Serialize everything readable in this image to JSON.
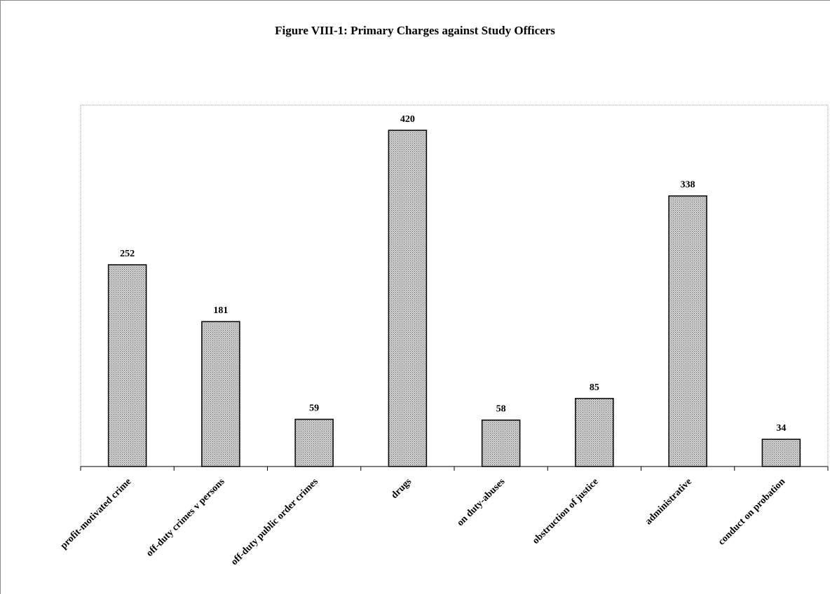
{
  "chart_data": {
    "type": "bar",
    "title": "Figure VIII-1: Primary Charges against Study Officers",
    "categories": [
      "profit-motivated crime",
      "off-duty crimes v persons",
      "off-duty public order crimes",
      "drugs",
      "on duty-abuses",
      "obstruction of justice",
      "administrative",
      "conduct on probation"
    ],
    "values": [
      252,
      181,
      59,
      420,
      58,
      85,
      338,
      34
    ],
    "data_labels": [
      "252",
      "181",
      "59",
      "420",
      "58",
      "85",
      "338",
      "34"
    ],
    "xlabel": "",
    "ylabel": "",
    "ylim": [
      0,
      450
    ],
    "grid": false,
    "legend": "none",
    "bar_fill": "#bdbdbd",
    "bar_stroke": "#000000"
  }
}
